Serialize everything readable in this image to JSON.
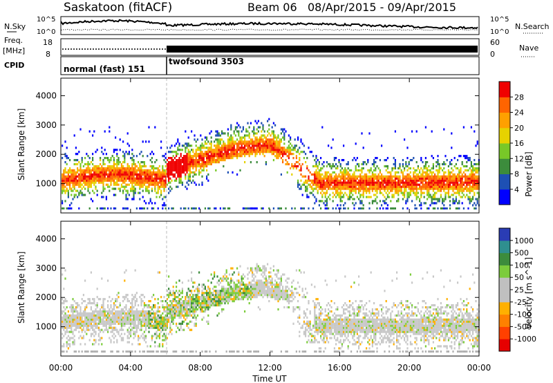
{
  "header": {
    "station": "Saskatoon (fitACF)",
    "beam": "Beam 06",
    "date_range": "08/Apr/2015 - 09/Apr/2015"
  },
  "top_panels": {
    "nsky_label": "N.Sky",
    "nsky_ticks": [
      "10^5",
      "10^0"
    ],
    "nsearch_label": "N.Search",
    "freq_label": "Freq.",
    "freq_unit": "[MHz]",
    "freq_ticks": [
      "18",
      "8"
    ],
    "nave_label": "Nave",
    "nave_ticks": [
      "60",
      "0"
    ],
    "cpid_label": "CPID",
    "cpid_modes": [
      {
        "name": "normal (fast) 151",
        "start_hour": 0
      },
      {
        "name": "twofsound 3503",
        "start_hour": 6
      }
    ]
  },
  "chart_data": [
    {
      "type": "heatmap",
      "title": "",
      "xlabel": "Time UT",
      "ylabel": "Slant Range [km]",
      "x_ticks": [
        "00:00",
        "04:00",
        "08:00",
        "12:00",
        "16:00",
        "20:00",
        "00:00"
      ],
      "xlim_hours": [
        0,
        24
      ],
      "y_ticks": [
        "1000",
        "2000",
        "3000",
        "4000"
      ],
      "ylim": [
        0,
        4600
      ],
      "colorbar": {
        "label": "Power [dB]",
        "ticks": [
          "4",
          "8",
          "12",
          "16",
          "20",
          "24",
          "28"
        ],
        "colors": [
          "#0000ff",
          "#1e50b4",
          "#3c8c3c",
          "#78c828",
          "#e6d200",
          "#ffa000",
          "#ff6400",
          "#f00000"
        ]
      }
    },
    {
      "type": "heatmap",
      "title": "",
      "xlabel": "Time UT",
      "ylabel": "Slant Range [km]",
      "x_ticks": [
        "00:00",
        "04:00",
        "08:00",
        "12:00",
        "16:00",
        "20:00",
        "00:00"
      ],
      "xlim_hours": [
        0,
        24
      ],
      "y_ticks": [
        "1000",
        "2000",
        "3000",
        "4000"
      ],
      "ylim": [
        0,
        4600
      ],
      "colorbar": {
        "label": "Velocity [m s^-1]",
        "ticks": [
          "1000",
          "500",
          "100",
          "50",
          "25",
          "-25",
          "-100",
          "-500",
          "-1000"
        ],
        "colors": [
          "#2a3cb4",
          "#2f8f8f",
          "#3c8c3c",
          "#7ccc3c",
          "#c0c0c0",
          "#c0c0c0",
          "#ffb000",
          "#ff8000",
          "#ff4000",
          "#e60000"
        ]
      }
    }
  ]
}
